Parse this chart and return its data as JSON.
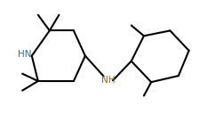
{
  "background_color": "#ffffff",
  "line_color": "#000000",
  "line_width": 1.5,
  "figsize": [
    2.53,
    1.56
  ],
  "dpi": 100,
  "xlim": [
    0,
    10.5
  ],
  "ylim": [
    0,
    6.5
  ],
  "HN_color": "#8B6914",
  "HN_blue": "#3366aa",
  "NH_color": "#8B6914"
}
